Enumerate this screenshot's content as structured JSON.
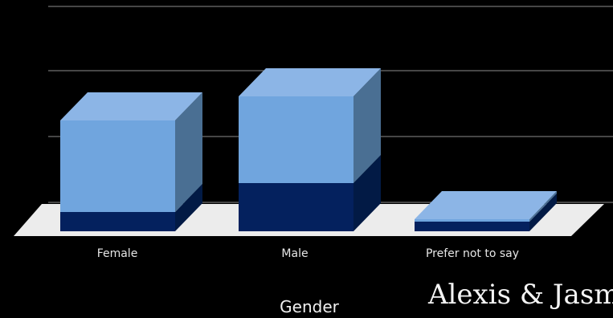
{
  "chart_data": {
    "type": "bar",
    "stacked": true,
    "three_d": true,
    "categories": [
      "Female",
      "Male",
      "Prefer not to say"
    ],
    "series": [
      {
        "values": [
          4,
          10,
          2
        ],
        "color": "#04215e",
        "side_color": "#021a45"
      },
      {
        "values": [
          19,
          18,
          0.5
        ],
        "color": "#70a5de",
        "side_color": "#4a6f93",
        "top_color": "#8cb5e6"
      }
    ],
    "xlabel": "Gender",
    "ylim": [
      0,
      34
    ],
    "grid": true,
    "legend": "none"
  },
  "annotation": {
    "text": "Alexis & Jasm"
  },
  "colors": {
    "background": "#000000",
    "gridline": "#8c8c8c",
    "floor": "#ececec",
    "label": "#e6e6e6"
  }
}
